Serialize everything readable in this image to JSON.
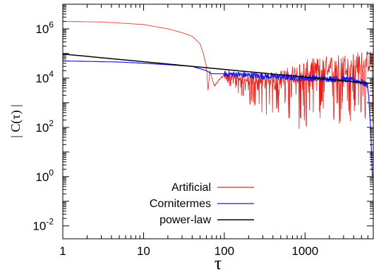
{
  "chart_data": {
    "type": "line",
    "title": "",
    "xlabel": "τ",
    "ylabel": "| C(τ) |",
    "xscale": "log",
    "yscale": "log",
    "xlim": [
      1,
      7000
    ],
    "ylim": [
      0.003,
      10000000
    ],
    "grid": false,
    "legend_position": "bottom-center",
    "x_ticks": [
      {
        "value": 1,
        "label": "1"
      },
      {
        "value": 10,
        "label": "10"
      },
      {
        "value": 100,
        "label": "100"
      },
      {
        "value": 1000,
        "label": "1000"
      }
    ],
    "y_ticks": [
      {
        "value": 0.01,
        "base": "10",
        "exp": "-2"
      },
      {
        "value": 1,
        "base": "10",
        "exp": "0"
      },
      {
        "value": 100,
        "base": "10",
        "exp": "2"
      },
      {
        "value": 10000,
        "base": "10",
        "exp": "4"
      },
      {
        "value": 1000000,
        "base": "10",
        "exp": "6"
      }
    ],
    "series": [
      {
        "name": "Artificial",
        "color": "#e8201a",
        "points": [
          [
            1,
            2000000
          ],
          [
            3,
            1900000
          ],
          [
            10,
            1500000
          ],
          [
            20,
            1000000
          ],
          [
            30,
            700000
          ],
          [
            40,
            500000
          ],
          [
            50,
            250000
          ],
          [
            55,
            100000
          ],
          [
            60,
            30000
          ],
          [
            63,
            3000
          ],
          [
            66,
            20000
          ],
          [
            75,
            5000
          ],
          [
            100,
            15000
          ],
          [
            200,
            8000
          ],
          [
            500,
            10000
          ],
          [
            1000,
            20000
          ],
          [
            2000,
            30000
          ],
          [
            4000,
            40000
          ],
          [
            7000,
            50000
          ]
        ]
      },
      {
        "name": "Cornitermes",
        "color": "#1a1aee",
        "points": [
          [
            1,
            50000
          ],
          [
            5,
            45000
          ],
          [
            10,
            40000
          ],
          [
            20,
            35000
          ],
          [
            40,
            30000
          ],
          [
            60,
            20000
          ],
          [
            70,
            15000
          ],
          [
            100,
            15000
          ],
          [
            300,
            12000
          ],
          [
            1000,
            10000
          ],
          [
            3000,
            9000
          ],
          [
            5000,
            7000
          ],
          [
            6000,
            5000
          ],
          [
            6500,
            100
          ],
          [
            6800,
            1
          ]
        ]
      },
      {
        "name": "power-law",
        "color": "#000000",
        "points": [
          [
            1,
            95000
          ],
          [
            7000,
            6000
          ]
        ]
      }
    ]
  }
}
